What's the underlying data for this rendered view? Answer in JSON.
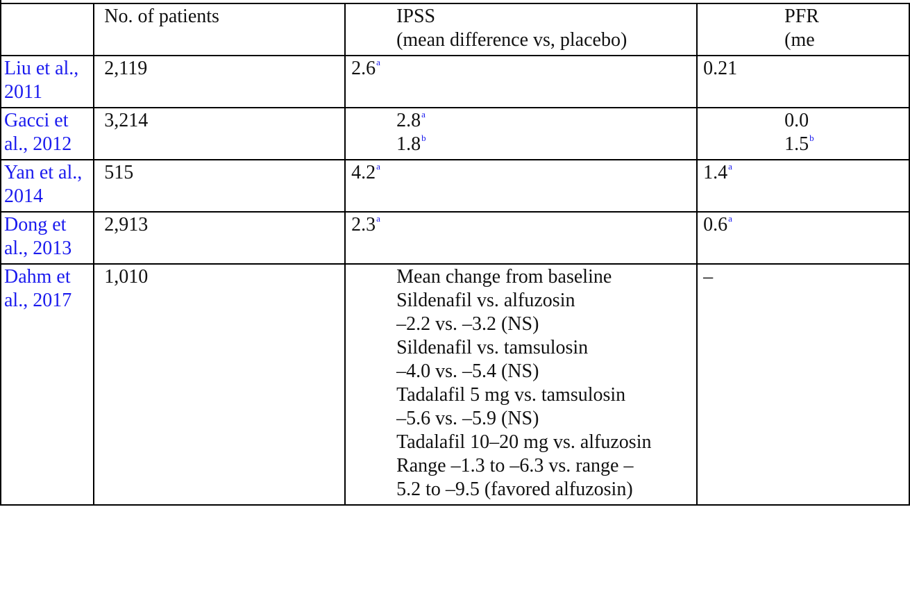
{
  "table": {
    "headers": {
      "study": "",
      "patients": "No. of patients",
      "ipss_line1": "IPSS",
      "ipss_line2": "(mean difference vs, placebo)",
      "pf_line1": "PFR",
      "pf_line2": "(me"
    },
    "rows": [
      {
        "study_line1": "Liu et al.,",
        "study_line2": "2011",
        "patients": "2,119",
        "ipss": "2.6",
        "ipss_sup": "a",
        "pf": "0.21"
      },
      {
        "study_line1": "Gacci et",
        "study_line2": "al., 2012",
        "patients": "3,214",
        "ipss_1": "2.8",
        "ipss_1_sup": "a",
        "ipss_2": "1.8",
        "ipss_2_sup": "b",
        "pf_1": "0.0",
        "pf_2": "1.5",
        "pf_2_sup": "b"
      },
      {
        "study_line1": "Yan et al.,",
        "study_line2": "2014",
        "patients": "515",
        "ipss": "4.2",
        "ipss_sup": "a",
        "pf": "1.4",
        "pf_sup": "a"
      },
      {
        "study_line1": "Dong et",
        "study_line2": "al., 2013",
        "patients": "2,913",
        "ipss": "2.3",
        "ipss_sup": "a",
        "pf": "0.6",
        "pf_sup": "a"
      },
      {
        "study_line1": "Dahm et",
        "study_line2": "al., 2017",
        "patients": "1,010",
        "ipss_lines": [
          "Mean change from baseline",
          "Sildenafil vs. alfuzosin",
          "–2.2 vs. –3.2 (NS)",
          "Sildenafil vs. tamsulosin",
          "–4.0 vs. –5.4 (NS)",
          "Tadalafil 5 mg vs. tamsulosin",
          "–5.6 vs. –5.9 (NS)",
          "Tadalafil 10–20 mg vs. alfuzosin",
          "Range –1.3 to –6.3 vs. range –",
          "5.2 to –9.5 (favored alfuzosin)"
        ],
        "pf": "–"
      }
    ]
  }
}
